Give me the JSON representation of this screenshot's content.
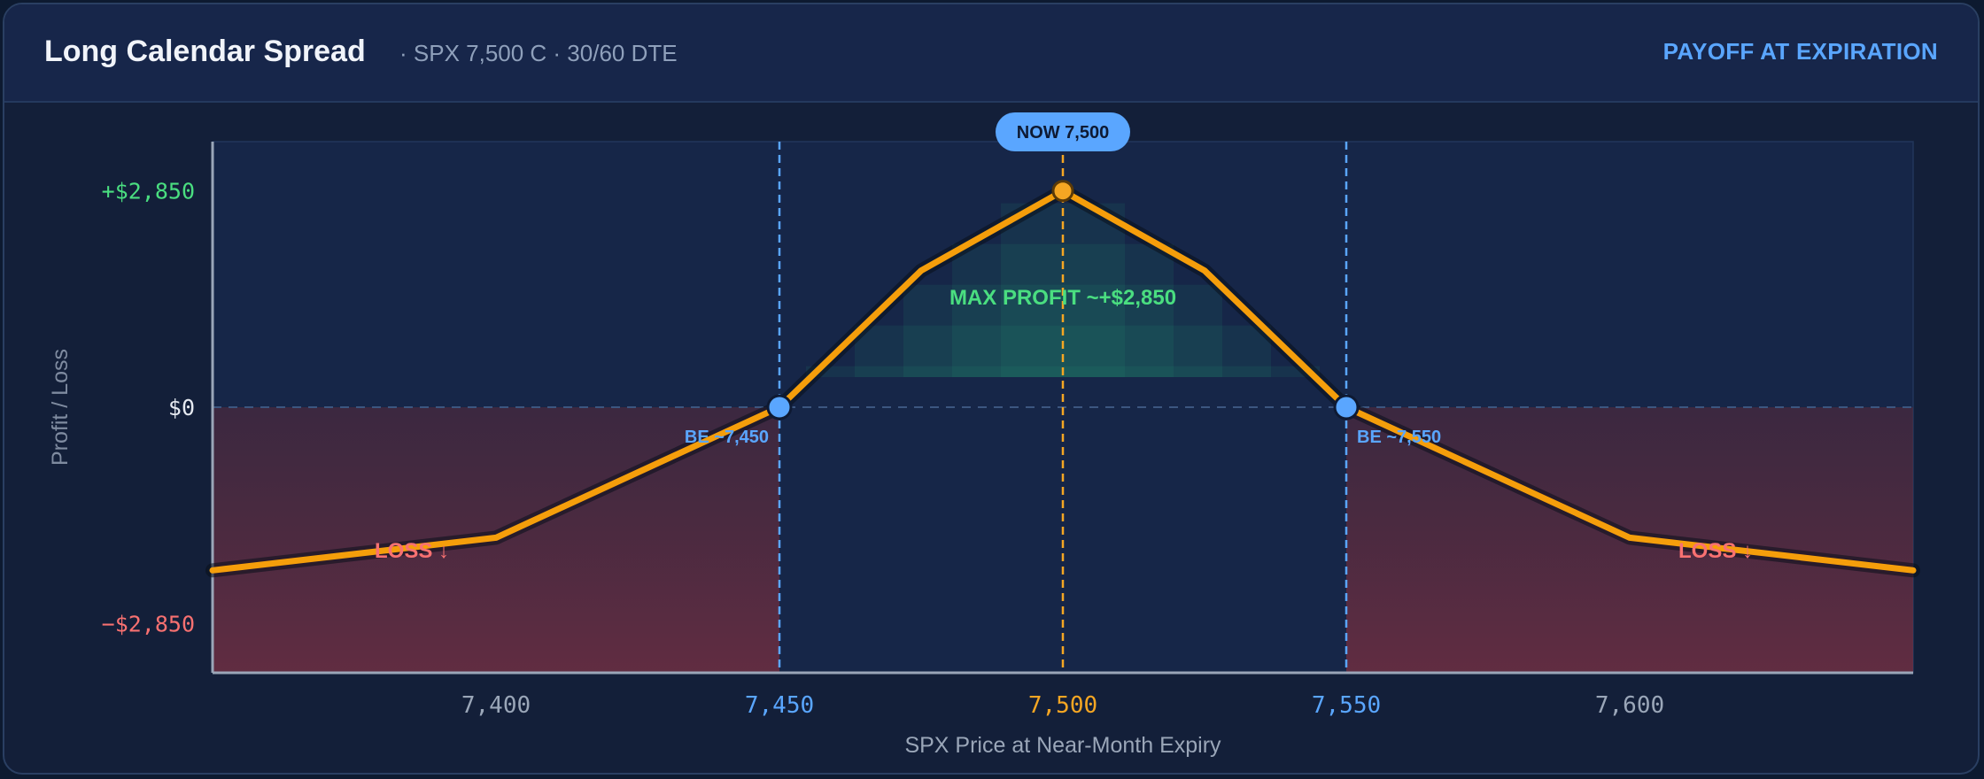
{
  "header": {
    "title": "Long Calendar Spread",
    "subtitle": "·  SPX 7,500 C · 30/60 DTE",
    "tag": "PAYOFF AT EXPIRATION"
  },
  "colors": {
    "payoff_line": "#f59e0b",
    "breakeven": "#5aa6ff",
    "now": "#f5a623",
    "profit": "#4ade80",
    "loss": "#f87171",
    "axis_text": "#9aa6b8"
  },
  "chart_data": {
    "type": "line",
    "xlabel": "SPX Price at Near-Month Expiry",
    "ylabel": "Profit / Loss",
    "xlim": [
      7350,
      7650
    ],
    "ylim": [
      -3500,
      3500
    ],
    "x_ticks": [
      {
        "value": 7400,
        "label": "7,400",
        "style": "normal"
      },
      {
        "value": 7450,
        "label": "7,450",
        "style": "breakeven"
      },
      {
        "value": 7500,
        "label": "7,500",
        "style": "now"
      },
      {
        "value": 7550,
        "label": "7,550",
        "style": "breakeven"
      },
      {
        "value": 7600,
        "label": "7,600",
        "style": "normal"
      }
    ],
    "y_ticks": [
      {
        "value": 2850,
        "label": "+$2,850",
        "style": "profit"
      },
      {
        "value": 0,
        "label": "$0",
        "style": "zero"
      },
      {
        "value": -2850,
        "label": "−$2,850",
        "style": "loss"
      }
    ],
    "series": [
      {
        "x": [
          7350,
          7400,
          7450,
          7475,
          7500,
          7525,
          7550,
          7600,
          7650
        ],
        "y": [
          -2150,
          -1720,
          0,
          1800,
          2850,
          1800,
          0,
          -1720,
          -2150
        ]
      }
    ],
    "now": {
      "x": 7500,
      "label": "NOW 7,500"
    },
    "breakevens": [
      {
        "x": 7450,
        "label": "BE ~7,450"
      },
      {
        "x": 7550,
        "label": "BE ~7,550"
      }
    ],
    "annotations": {
      "max_profit": "MAX PROFIT  ~+$2,850",
      "loss_left": "LOSS ↓",
      "loss_right": "LOSS ↓"
    },
    "grid": false
  }
}
